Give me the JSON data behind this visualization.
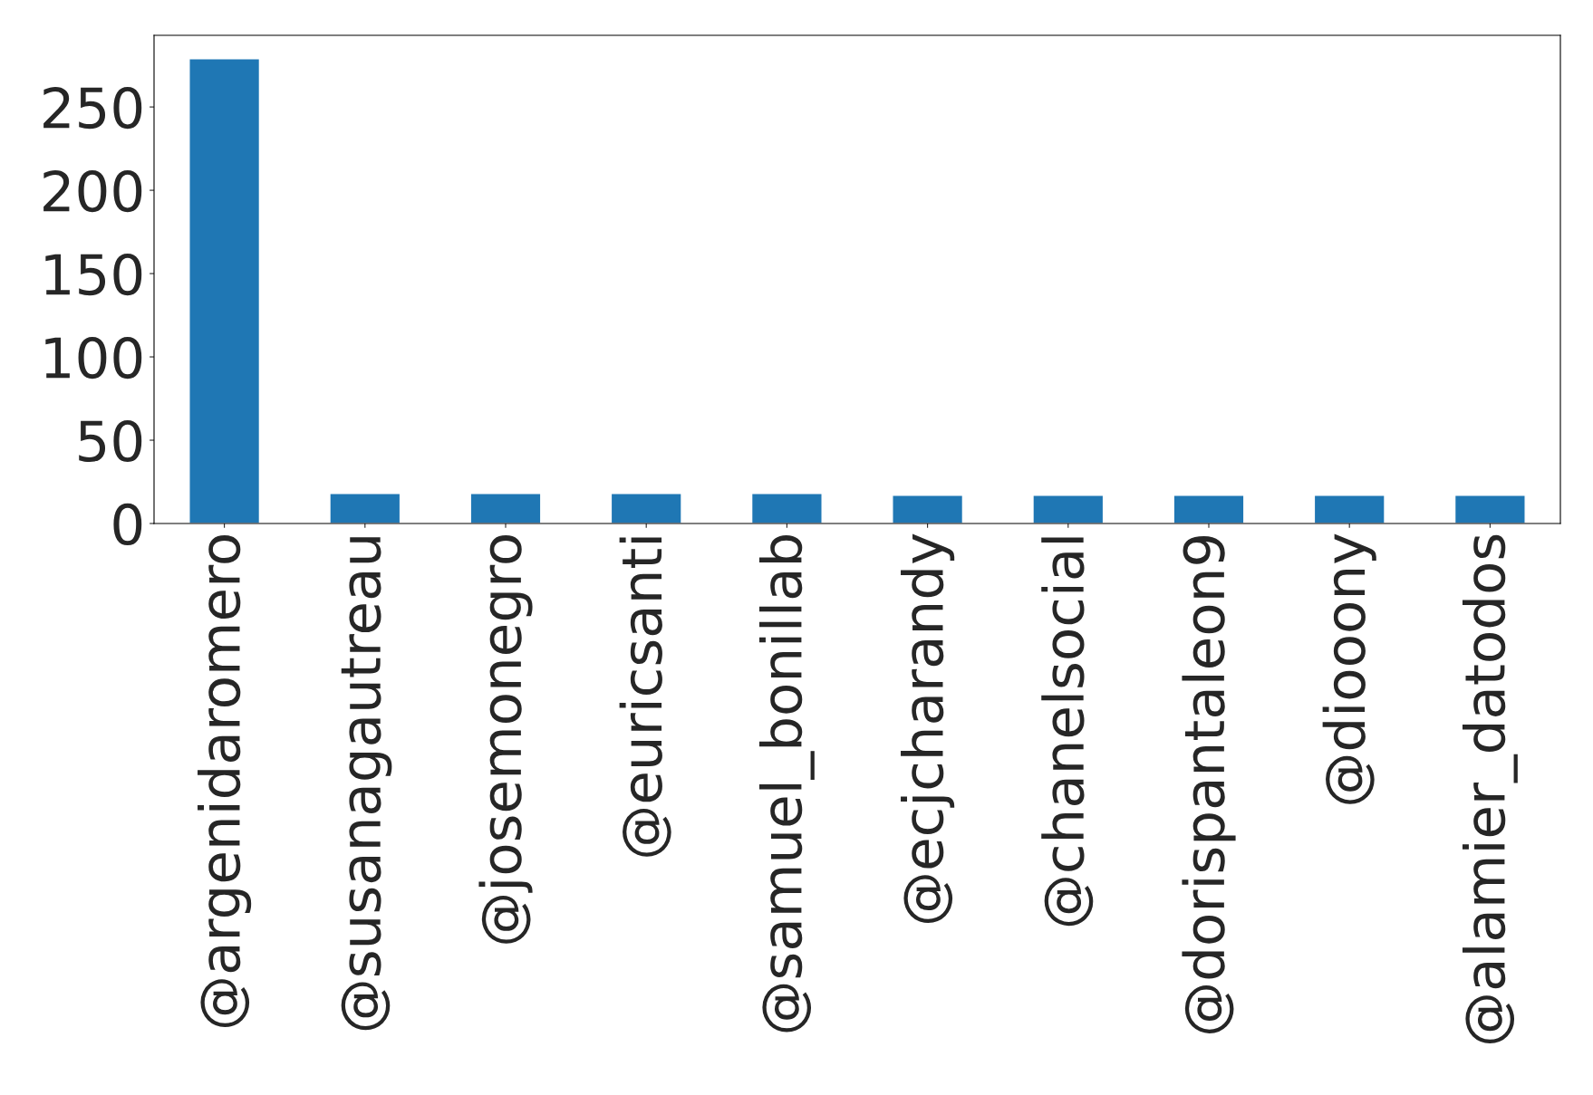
{
  "chart_data": {
    "type": "bar",
    "categories": [
      "@argenidaromero",
      "@susanagautreau",
      "@josemonegro",
      "@euricsanti",
      "@samuel_bonillab",
      "@ecjcharandy",
      "@chanelsocial",
      "@dorispantaleon9",
      "@diooony",
      "@alamier_datodos"
    ],
    "values": [
      279,
      18,
      18,
      18,
      18,
      17,
      17,
      17,
      17,
      17
    ],
    "color": "#1f77b4",
    "ylim": [
      0,
      293
    ],
    "yticks": [
      0,
      50,
      100,
      150,
      200,
      250
    ],
    "grid": false,
    "legend": false
  }
}
